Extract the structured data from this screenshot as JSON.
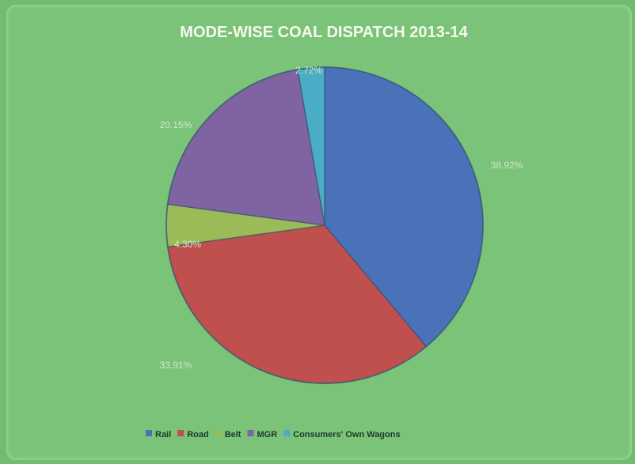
{
  "chart_data": {
    "type": "pie",
    "title": "MODE-WISE  COAL DISPATCH 2013-14",
    "categories": [
      "Rail",
      "Road",
      "Belt",
      "MGR",
      "Consumers' Own Wagons"
    ],
    "values": [
      38.92,
      33.91,
      4.3,
      20.15,
      2.72
    ],
    "value_labels": [
      "38.92%",
      "33.91%",
      "4.30%",
      "20.15%",
      "2.72%"
    ],
    "colors": [
      "#4a72b8",
      "#c0504d",
      "#9bbb59",
      "#8064a2",
      "#4bacc6"
    ],
    "legend_position": "bottom",
    "start_angle_deg": 0,
    "direction": "clockwise"
  }
}
